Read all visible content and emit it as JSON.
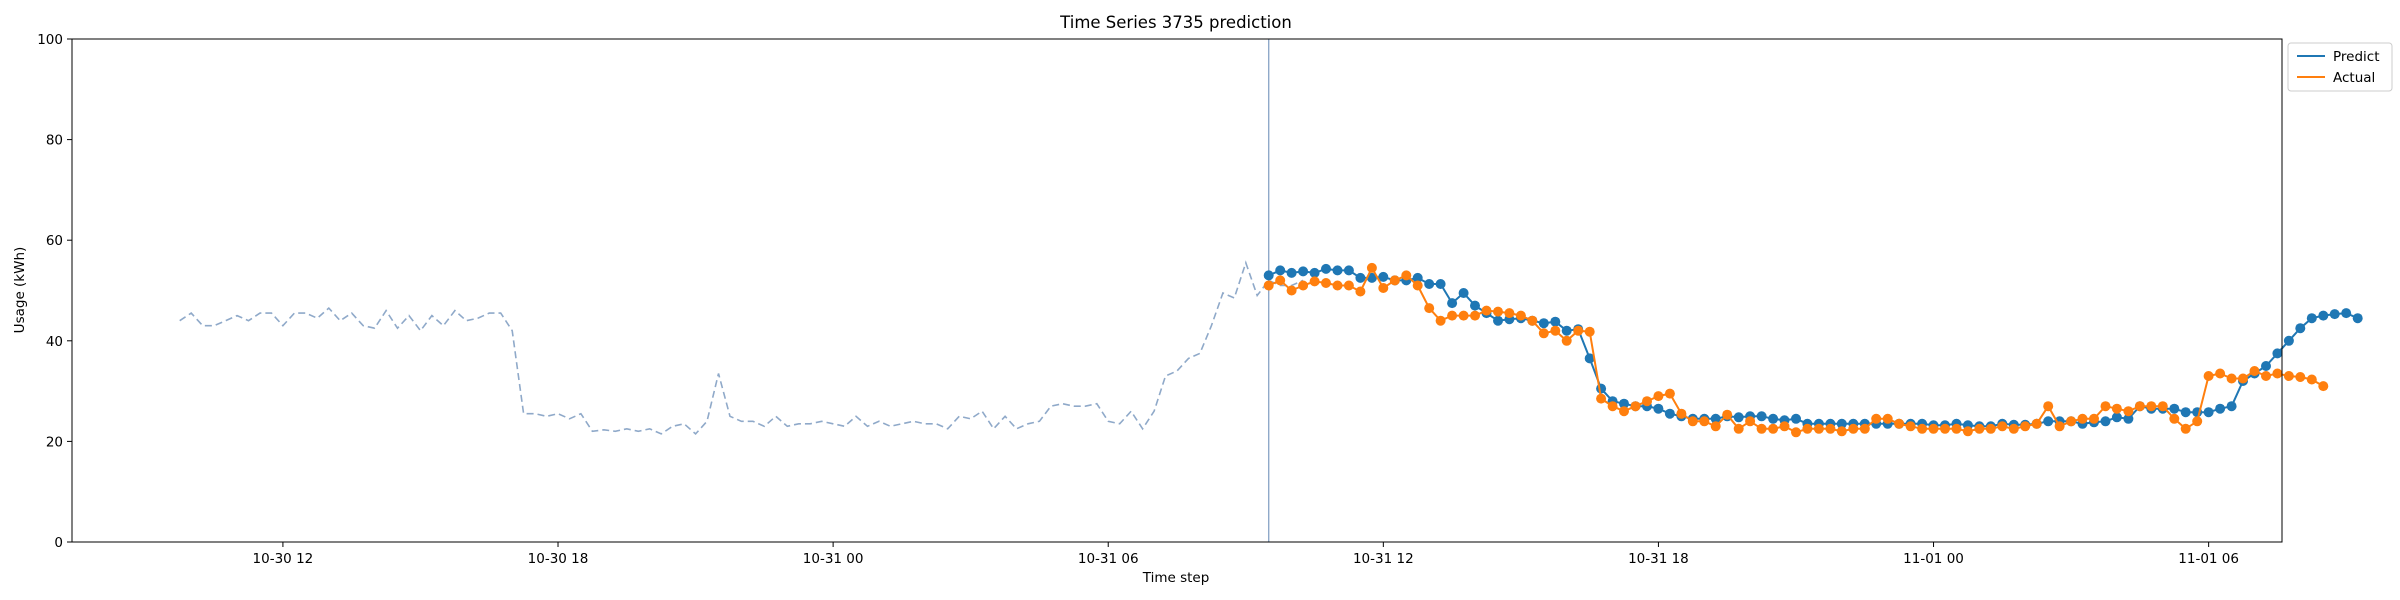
{
  "chart_data": {
    "type": "line",
    "title": "Time Series 3735 prediction",
    "xlabel": "Time step",
    "ylabel": "Usage (kWh)",
    "ylim": [
      0,
      100
    ],
    "yticks": [
      0,
      20,
      40,
      60,
      80,
      100
    ],
    "xlim_hours": [
      -4.6,
      43.6
    ],
    "x_ticks": [
      {
        "label": "10-30 12",
        "hour": 0
      },
      {
        "label": "10-30 18",
        "hour": 6
      },
      {
        "label": "10-31 00",
        "hour": 12
      },
      {
        "label": "10-31 06",
        "hour": 18
      },
      {
        "label": "10-31 12",
        "hour": 24
      },
      {
        "label": "10-31 18",
        "hour": 30
      },
      {
        "label": "11-01 00",
        "hour": 36
      },
      {
        "label": "11-01 06",
        "hour": 42
      }
    ],
    "forecast_start_hour": 21.5,
    "colors": {
      "history": "#8fa9c9",
      "predict": "#1f77b4",
      "actual": "#ff7f0e",
      "divider": "#8fa9c9"
    },
    "legend": {
      "position": "top-right",
      "entries": [
        "Predict",
        "Actual"
      ]
    },
    "history": {
      "start_hour": -2.25,
      "step_hours": 0.25,
      "values": [
        44,
        45.5,
        43,
        43,
        44,
        45,
        44,
        45.5,
        45.5,
        43,
        45.5,
        45.5,
        44.5,
        46.5,
        44,
        45.5,
        43,
        42.5,
        46,
        42.5,
        45,
        42,
        45,
        43,
        46,
        44,
        44.5,
        45.5,
        45.5,
        42,
        25.5,
        25.5,
        25,
        25.5,
        24.5,
        25.5,
        22,
        22.3,
        22,
        22.5,
        22,
        22.5,
        21.5,
        23,
        23.5,
        21.5,
        24,
        33.5,
        25,
        24,
        24,
        23,
        25,
        23,
        23.5,
        23.5,
        24,
        23.5,
        23,
        25,
        23,
        24,
        23,
        23.5,
        24,
        23.5,
        23.5,
        22.5,
        25,
        24.5,
        26,
        22.5,
        25,
        22.5,
        23.5,
        24,
        27,
        27.5,
        27,
        27,
        27.5,
        24,
        23.5,
        26,
        22.5,
        26,
        33,
        34,
        36.5,
        37.5,
        43,
        49.5,
        48.5,
        55.5,
        49,
        52,
        51,
        51,
        52
      ]
    },
    "series": [
      {
        "name": "Predict",
        "start_hour": 21.5,
        "step_hours": 0.25,
        "values": [
          53,
          54,
          53.5,
          53.8,
          53.5,
          54.3,
          54,
          54,
          52.5,
          52.5,
          52.7,
          52,
          52,
          52.5,
          51.3,
          51.3,
          47.5,
          49.5,
          47,
          45.5,
          44,
          44.3,
          44.5,
          44,
          43.5,
          43.8,
          42,
          42.3,
          36.5,
          30.5,
          28,
          27.5,
          27,
          27,
          26.5,
          25.5,
          25,
          24.5,
          24.5,
          24.5,
          25,
          24.8,
          25,
          25,
          24.5,
          24.2,
          24.5,
          23.5,
          23.5,
          23.5,
          23.5,
          23.5,
          23.5,
          23.5,
          23.5,
          23.5,
          23.5,
          23.5,
          23.2,
          23.2,
          23.5,
          23.2,
          23,
          23,
          23.5,
          23.3,
          23.3,
          23.5,
          24,
          24,
          24,
          23.5,
          23.8,
          24,
          24.8,
          24.5,
          27,
          26.5,
          26.5,
          26.5,
          25.8,
          25.8,
          25.8,
          26.5,
          27,
          32,
          33.5,
          35,
          37.5,
          40,
          42.5,
          44.5,
          45,
          45.3,
          45.5,
          44.5
        ]
      },
      {
        "name": "Actual",
        "start_hour": 21.5,
        "step_hours": 0.25,
        "values": [
          51,
          52,
          50,
          51,
          51.8,
          51.5,
          51,
          51,
          49.8,
          54.5,
          50.5,
          52,
          53,
          51,
          46.5,
          44,
          45,
          45,
          45,
          46,
          45.8,
          45.5,
          45,
          44,
          41.5,
          42,
          40,
          42,
          41.8,
          28.5,
          27,
          26,
          27,
          28,
          29,
          29.5,
          25.5,
          24,
          24,
          23,
          25.3,
          22.5,
          24,
          22.5,
          22.5,
          23,
          21.8,
          22.5,
          22.5,
          22.5,
          22,
          22.5,
          22.5,
          24.5,
          24.5,
          23.5,
          23,
          22.5,
          22.5,
          22.5,
          22.5,
          22,
          22.5,
          22.5,
          23,
          22.5,
          23,
          23.5,
          27,
          23,
          24,
          24.5,
          24.5,
          27,
          26.5,
          26,
          27,
          27,
          27,
          24.5,
          22.5,
          24,
          33,
          33.5,
          32.5,
          32.5,
          34,
          33,
          33.5,
          33,
          32.8,
          32.3,
          31
        ]
      }
    ]
  }
}
